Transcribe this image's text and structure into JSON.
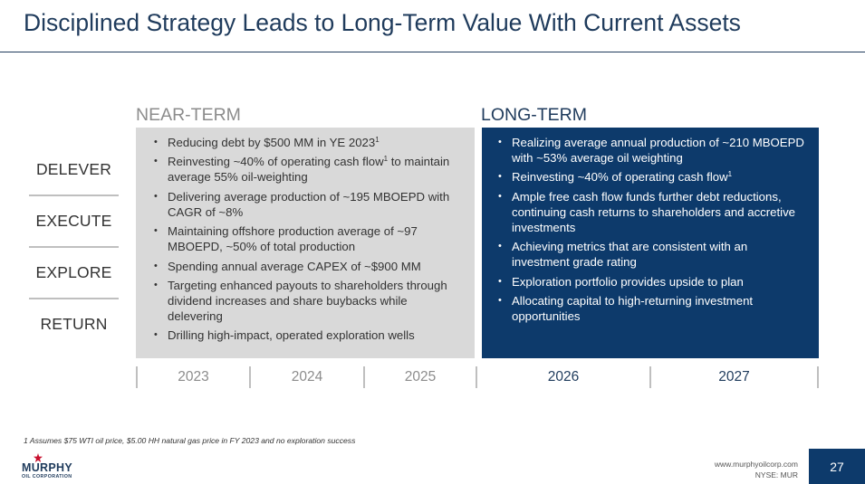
{
  "title": "Disciplined Strategy Leads to Long-Term Value With Current Assets",
  "near_term": {
    "heading": "NEAR-TERM",
    "bullets": [
      {
        "text": "Reducing debt by $500 MM in YE 2023",
        "sup": "1",
        "rest": ""
      },
      {
        "text": "Reinvesting ~40% of operating cash flow",
        "sup": "1",
        "rest": " to maintain average 55% oil-weighting"
      },
      {
        "text": "Delivering average production of ~195 MBOEPD with CAGR of ~8%"
      },
      {
        "text": "Maintaining offshore production average of ~97 MBOEPD, ~50% of total production"
      },
      {
        "text": "Spending annual average CAPEX of ~$900 MM"
      },
      {
        "text": "Targeting enhanced payouts to shareholders through dividend increases and share buybacks while delevering"
      },
      {
        "text": "Drilling high-impact, operated exploration wells"
      }
    ]
  },
  "long_term": {
    "heading": "LONG-TERM",
    "bullets": [
      {
        "text": "Realizing average annual production of ~210 MBOEPD with ~53% average oil weighting"
      },
      {
        "text": "Reinvesting ~40% of operating cash flow",
        "sup": "1"
      },
      {
        "text": "Ample free cash flow funds further debt reductions, continuing cash returns to shareholders and accretive investments"
      },
      {
        "text": "Achieving metrics that are consistent with an investment grade rating"
      },
      {
        "text": "Exploration portfolio provides upside to plan"
      },
      {
        "text": "Allocating capital to high-returning investment opportunities"
      }
    ]
  },
  "side_labels": [
    "DELEVER",
    "EXECUTE",
    "EXPLORE",
    "RETURN"
  ],
  "years": [
    "2023",
    "2024",
    "2025",
    "2026",
    "2027"
  ],
  "footnote": "1 Assumes $75 WTI oil price, $5.00 HH natural gas price in FY 2023 and no exploration success",
  "footer": {
    "logo_name": "MURPHY",
    "logo_sub": "OIL CORPORATION",
    "website": "www.murphyoilcorp.com",
    "ticker": "NYSE: MUR",
    "page_number": "27"
  },
  "colors": {
    "navy": "#0d3a6b",
    "title_blue": "#1f3b5c",
    "gray_box": "#d9d9d9",
    "near_head_gray": "#8c8c8c",
    "logo_red": "#c8102e"
  }
}
